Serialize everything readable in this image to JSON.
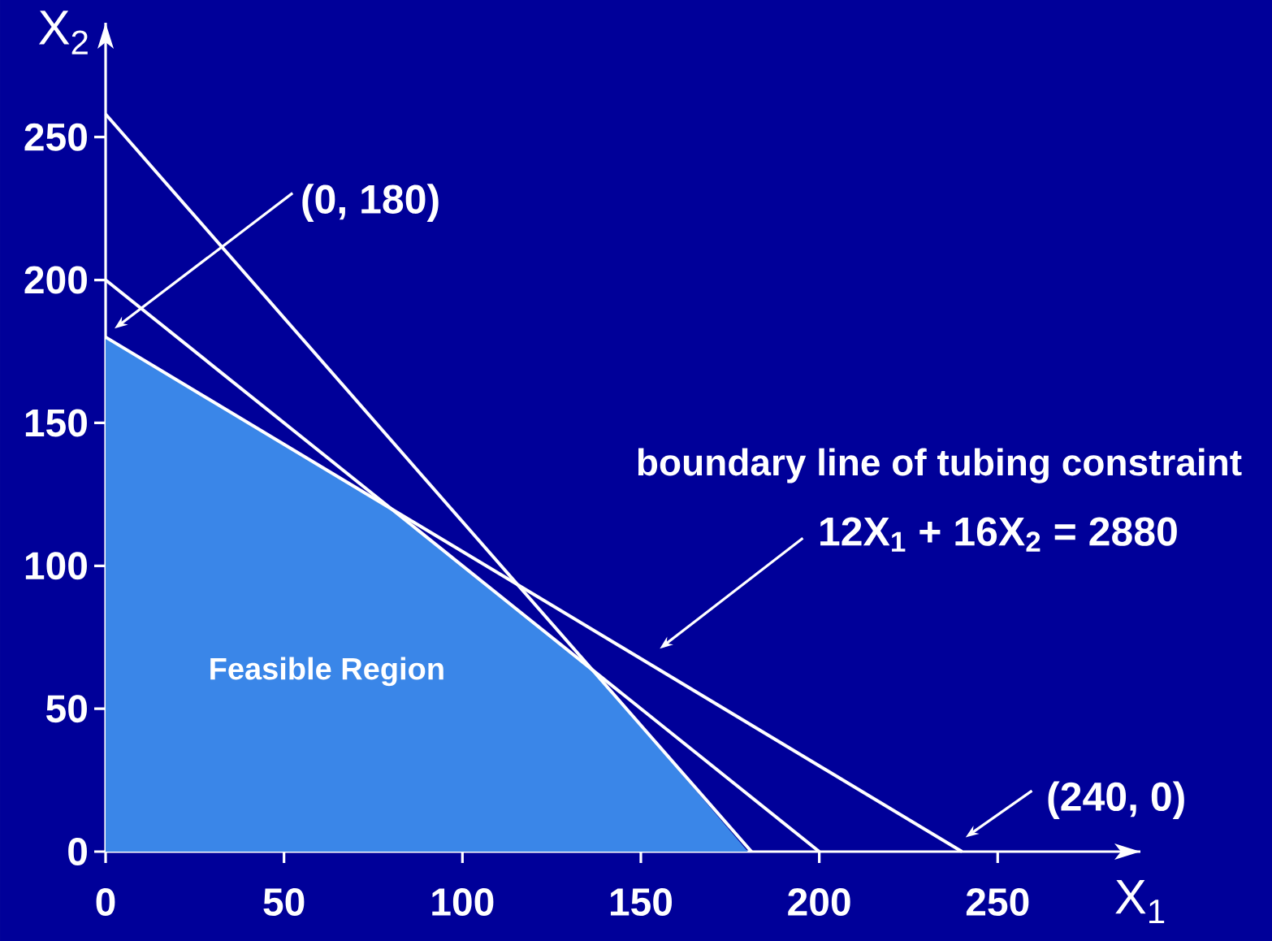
{
  "chart_data": {
    "type": "line",
    "xlabel": "X$_{1}$",
    "ylabel": "X$_{2}$",
    "xlim": [
      0,
      290
    ],
    "ylim": [
      0,
      290
    ],
    "xticks": [
      0,
      50,
      100,
      150,
      200,
      250
    ],
    "yticks": [
      0,
      50,
      100,
      150,
      200,
      250
    ],
    "marker": "none",
    "line_style": "solid",
    "series": [
      {
        "type": "area",
        "color": "#3a86e8",
        "x": [
          0,
          80,
          137,
          180
        ],
        "values": [
          180,
          120,
          63,
          0
        ]
      },
      {
        "color": "#ffffff",
        "x": [
          0,
          181
        ],
        "values": [
          258,
          0
        ]
      },
      {
        "color": "#ffffff",
        "x": [
          0,
          200
        ],
        "values": [
          200,
          0
        ]
      },
      {
        "color": "#ffffff",
        "x": [
          0,
          240
        ],
        "values": [
          180,
          0
        ]
      }
    ],
    "annotations": [
      "(0, 180)",
      "(240, 0)",
      "boundary line of tubing constraint",
      "12X$_{1}$ + 16X$_{2}$ = 2880",
      "Feasible Region"
    ]
  }
}
